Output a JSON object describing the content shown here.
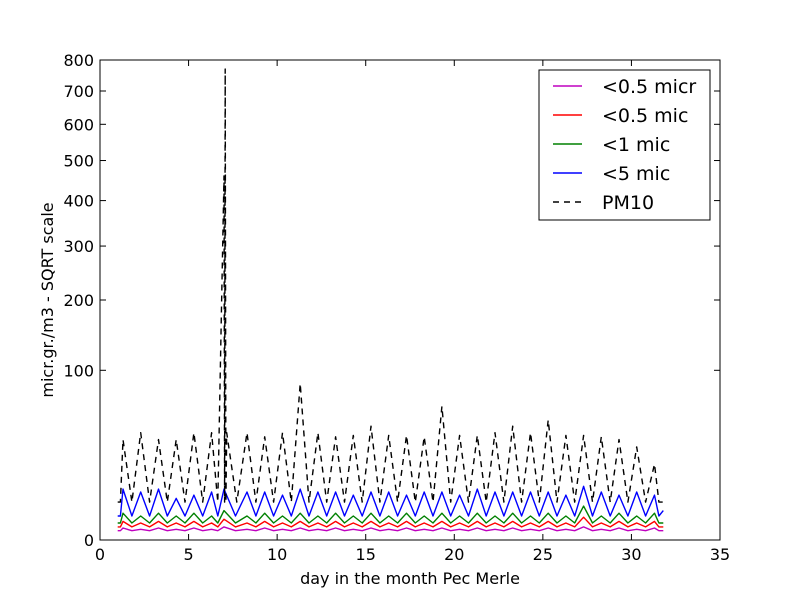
{
  "chart_data": {
    "type": "line",
    "title": "",
    "xlabel": "day in the month Pec Merle",
    "ylabel": "micr.gr./m3 - SQRT scale",
    "xlim": [
      0,
      35
    ],
    "ylim": [
      0,
      800
    ],
    "y_scale": "sqrt",
    "grid": false,
    "legend_position": "top-right",
    "x_ticks": [
      0,
      5,
      10,
      15,
      20,
      25,
      30,
      35
    ],
    "x_tick_labels": [
      "0",
      "5",
      "10",
      "15",
      "20",
      "25",
      "30",
      "35"
    ],
    "y_ticks": [
      0,
      100,
      200,
      300,
      400,
      500,
      600,
      700,
      800
    ],
    "y_tick_labels": [
      "0",
      "100",
      "200",
      "300",
      "400",
      "500",
      "600",
      "700",
      "800"
    ],
    "series": [
      {
        "name": "<0.5 micr",
        "color": "#bf00bf",
        "dash": "solid",
        "x": [
          1.0,
          1.3,
          2.3,
          3.3,
          4.3,
          5.3,
          6.3,
          7.0,
          8.3,
          9.3,
          10.3,
          11.3,
          12.3,
          13.3,
          14.3,
          15.3,
          16.3,
          17.3,
          18.3,
          19.3,
          20.3,
          21.3,
          22.3,
          23.3,
          24.3,
          25.3,
          26.3,
          27.3,
          28.3,
          29.3,
          30.3,
          31.3,
          31.8
        ],
        "y": [
          0.3,
          0.5,
          0.4,
          0.5,
          0.4,
          0.5,
          0.4,
          0.6,
          0.4,
          0.5,
          0.4,
          0.5,
          0.4,
          0.5,
          0.4,
          0.5,
          0.4,
          0.5,
          0.4,
          0.5,
          0.4,
          0.5,
          0.4,
          0.5,
          0.4,
          0.5,
          0.4,
          0.6,
          0.4,
          0.5,
          0.4,
          0.5,
          0.3
        ]
      },
      {
        "name": "<0.5 mic",
        "color": "#ff0000",
        "dash": "solid",
        "x": [
          1.0,
          1.3,
          2.3,
          3.3,
          4.3,
          5.3,
          6.3,
          7.0,
          8.3,
          9.3,
          10.3,
          11.3,
          12.3,
          13.3,
          14.3,
          15.3,
          16.3,
          17.3,
          18.3,
          19.3,
          20.3,
          21.3,
          22.3,
          23.3,
          24.3,
          25.3,
          26.3,
          27.3,
          28.3,
          29.3,
          30.3,
          31.3,
          31.8
        ],
        "y": [
          0.6,
          1.2,
          1.0,
          1.2,
          1.0,
          1.2,
          1.0,
          1.5,
          1.0,
          1.2,
          1.0,
          1.2,
          1.0,
          1.2,
          1.0,
          1.2,
          1.0,
          1.2,
          1.0,
          1.2,
          1.0,
          1.2,
          1.0,
          1.2,
          1.0,
          1.2,
          1.0,
          1.8,
          1.0,
          1.2,
          1.0,
          1.2,
          0.6
        ]
      },
      {
        "name": "<1 mic",
        "color": "#008000",
        "dash": "solid",
        "x": [
          1.0,
          1.3,
          2.3,
          3.3,
          4.3,
          5.3,
          6.3,
          7.0,
          8.3,
          9.3,
          10.3,
          11.3,
          12.3,
          13.3,
          14.3,
          15.3,
          16.3,
          17.3,
          18.3,
          19.3,
          20.3,
          21.3,
          22.3,
          23.3,
          24.3,
          25.3,
          26.3,
          27.3,
          28.3,
          29.3,
          30.3,
          31.3,
          31.8
        ],
        "y": [
          1.0,
          2.5,
          2.0,
          2.5,
          2.0,
          2.5,
          2.0,
          3.0,
          2.0,
          2.5,
          2.0,
          2.5,
          2.0,
          2.5,
          2.0,
          2.5,
          2.0,
          2.5,
          2.0,
          2.5,
          2.0,
          2.5,
          2.0,
          2.5,
          2.0,
          2.5,
          2.0,
          4.0,
          2.0,
          2.5,
          2.0,
          2.5,
          1.0
        ]
      },
      {
        "name": "<5 mic",
        "color": "#0000ff",
        "dash": "solid",
        "x": [
          1.0,
          1.3,
          2.3,
          3.3,
          4.3,
          5.3,
          6.3,
          7.0,
          8.3,
          9.3,
          10.3,
          11.3,
          12.3,
          13.3,
          14.3,
          15.3,
          16.3,
          17.3,
          18.3,
          19.3,
          20.3,
          21.3,
          22.3,
          23.3,
          24.3,
          25.3,
          26.3,
          27.3,
          28.3,
          29.3,
          30.3,
          31.3,
          31.8
        ],
        "y": [
          2,
          9,
          8,
          9,
          6,
          7,
          8,
          9,
          8,
          8,
          7,
          9,
          8,
          8,
          7,
          8,
          8,
          7,
          8,
          8,
          7,
          9,
          8,
          8,
          8,
          8,
          7,
          10,
          8,
          7,
          8,
          7,
          3
        ]
      },
      {
        "name": "PM10",
        "color": "#000000",
        "dash": "dashed",
        "x": [
          1.0,
          1.3,
          2.3,
          3.3,
          4.3,
          5.3,
          6.3,
          7.0,
          7.07,
          7.15,
          8.3,
          9.3,
          10.3,
          11.3,
          12.3,
          13.3,
          14.3,
          15.3,
          16.3,
          17.3,
          18.3,
          19.3,
          20.3,
          21.3,
          22.3,
          23.3,
          24.3,
          25.3,
          26.3,
          27.3,
          28.3,
          29.3,
          30.3,
          31.3,
          31.8
        ],
        "y": [
          5,
          35,
          40,
          35,
          35,
          40,
          40,
          460,
          770,
          40,
          40,
          37,
          40,
          85,
          40,
          37,
          38,
          45,
          38,
          38,
          37,
          62,
          38,
          38,
          40,
          45,
          40,
          50,
          38,
          38,
          37,
          35,
          30,
          20,
          5
        ]
      }
    ]
  }
}
